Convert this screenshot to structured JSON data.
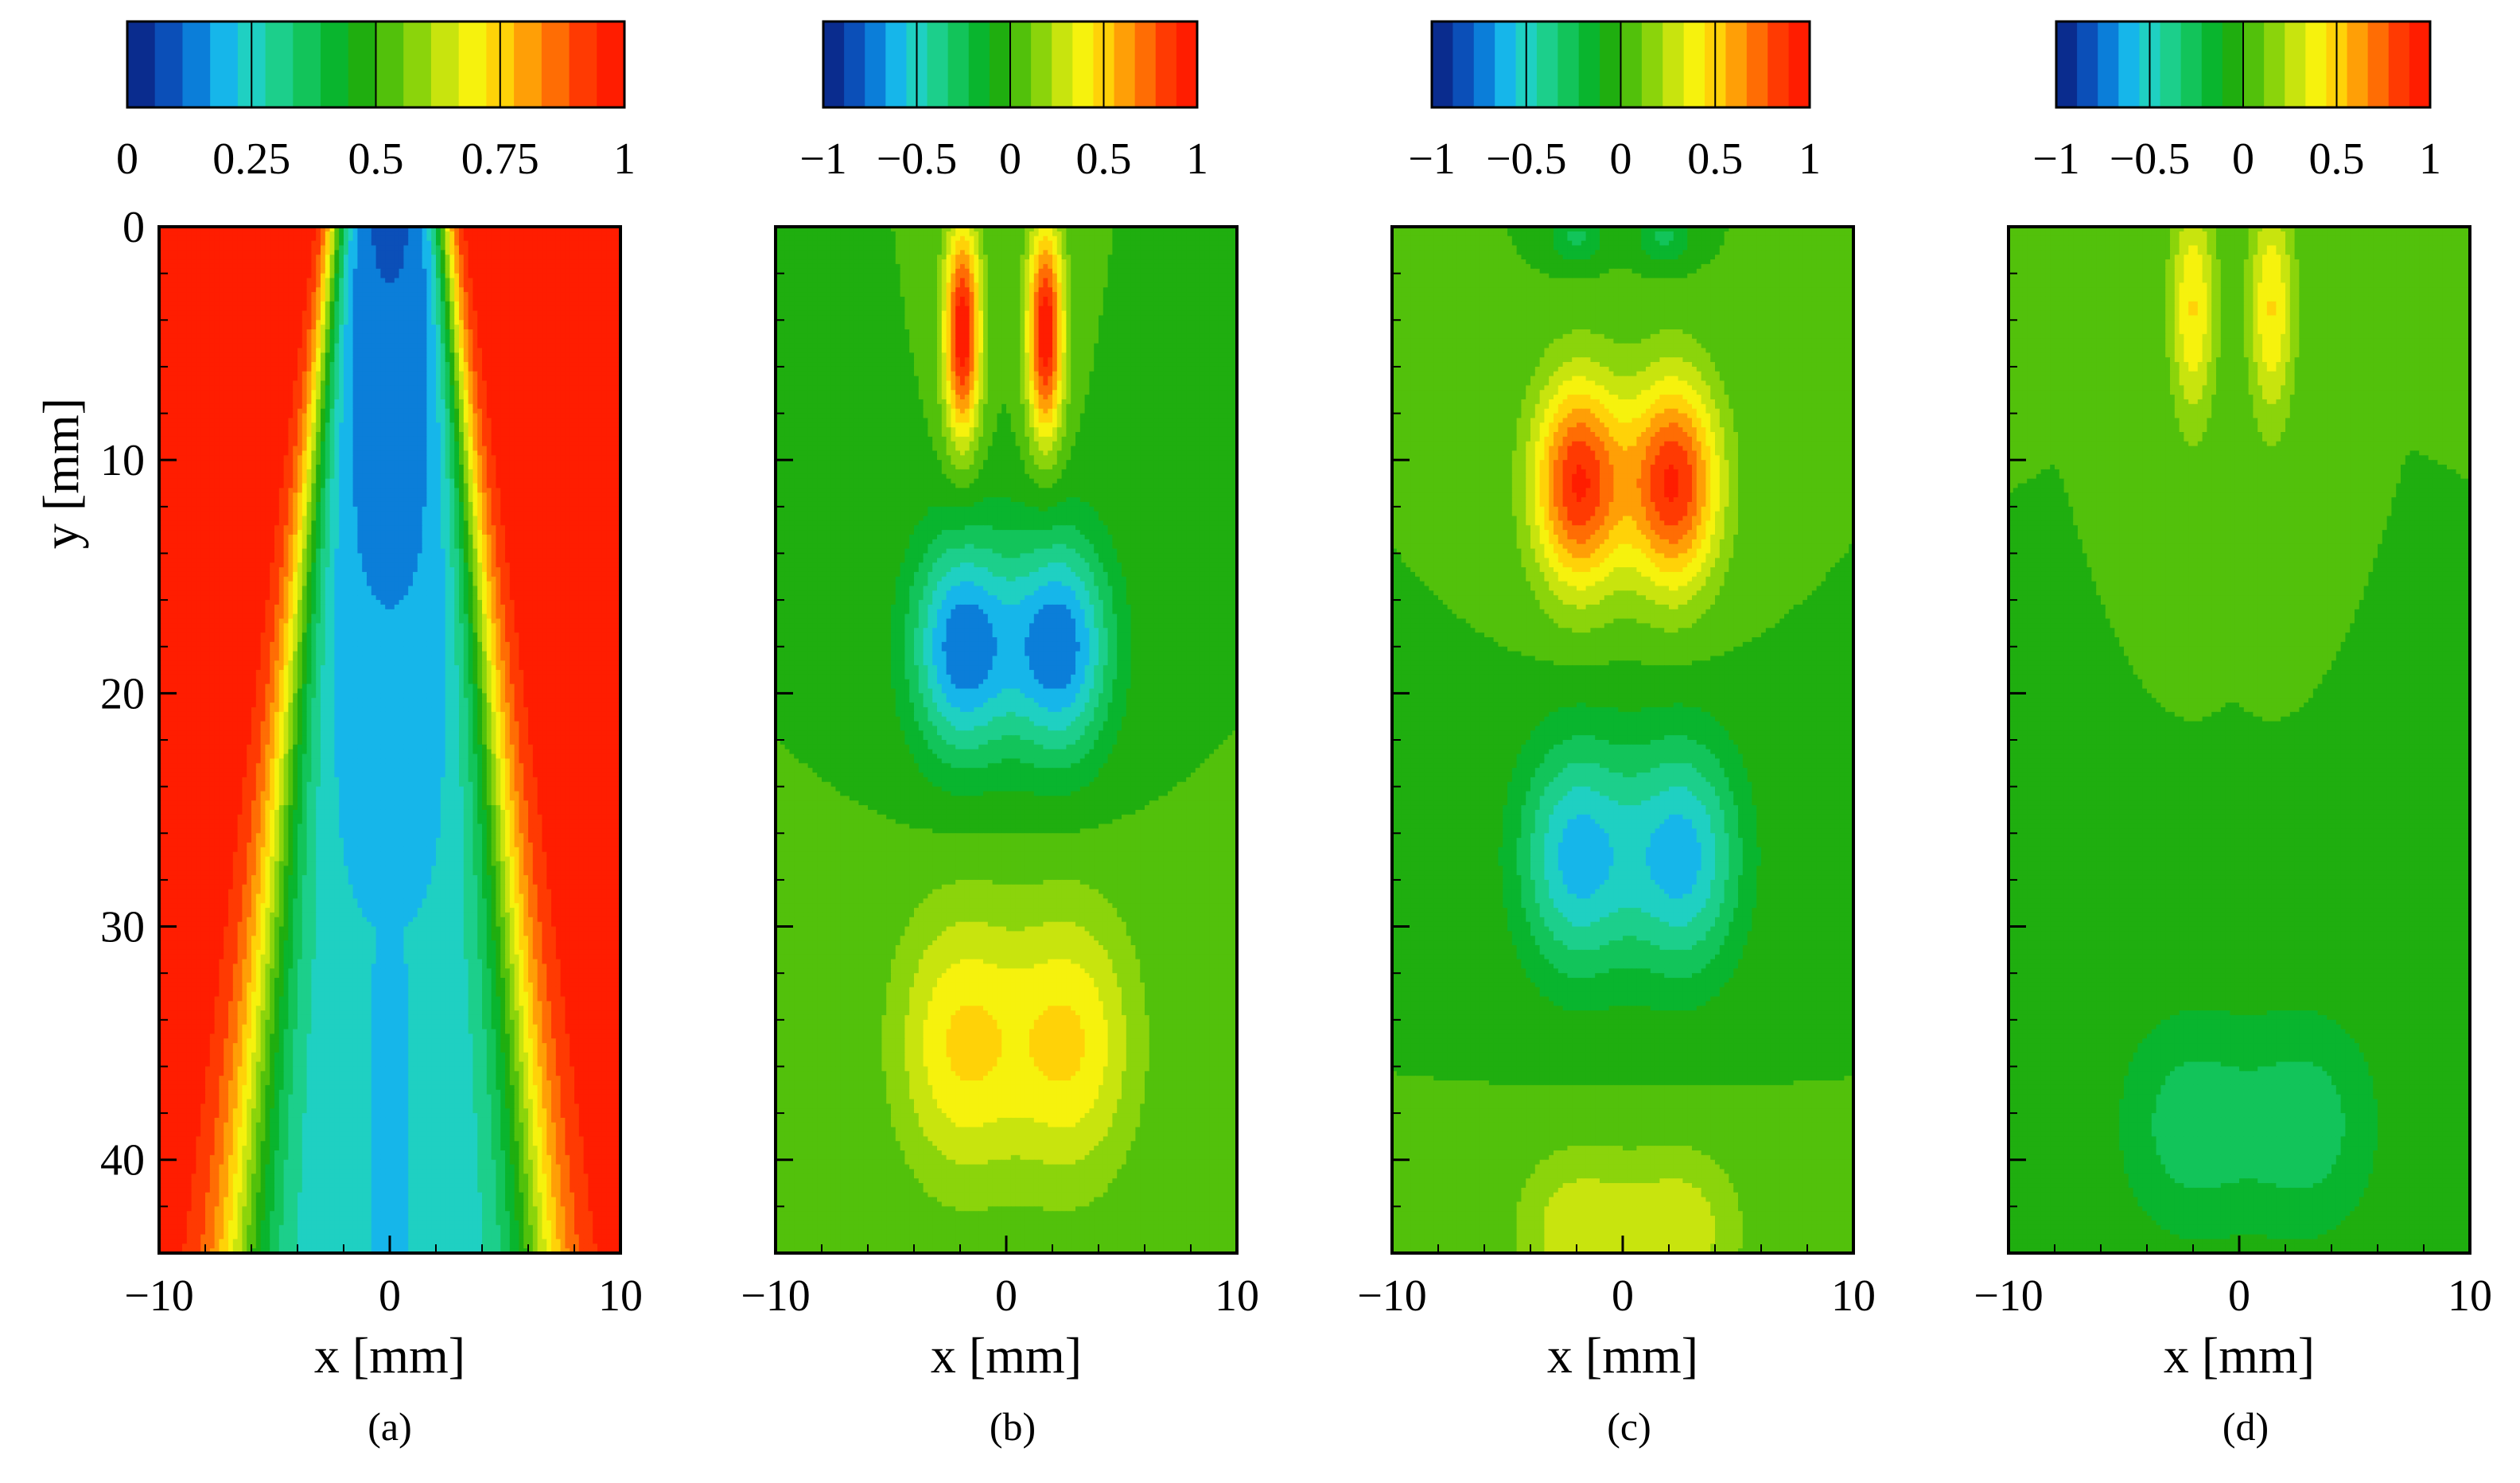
{
  "figure": {
    "panels": [
      "(a)",
      "(b)",
      "(c)",
      "(d)"
    ],
    "colors": {
      "background": "#00b400",
      "scale": [
        "#0a2c8e",
        "#0b4fb8",
        "#0b7ed9",
        "#16b6ea",
        "#1fd0c2",
        "#1ccf8b",
        "#12c45a",
        "#09b52e",
        "#1fae0f",
        "#52c10b",
        "#8bd40b",
        "#c8e40e",
        "#f6f20d",
        "#ffd208",
        "#ff9f06",
        "#ff6d04",
        "#ff3a02",
        "#ff1d00"
      ]
    }
  },
  "chart_data": [
    {
      "type": "heatmap",
      "panel_label": "(a)",
      "xlabel": "x [mm]",
      "ylabel": "y [mm]",
      "xlim": [
        -10,
        10
      ],
      "ylim": [
        0,
        44
      ],
      "xticks": [
        "−10",
        "0",
        "10"
      ],
      "yticks": [
        "0",
        "10",
        "20",
        "30",
        "40"
      ],
      "colorbar": {
        "min": 0,
        "max": 1,
        "ticks": [
          "0",
          "0.25",
          "0.5",
          "0.75",
          "1"
        ]
      },
      "field": {
        "kind": "jet-core",
        "background_value": 1,
        "core_min": 0.1,
        "core_halfwidth_top": 1.7,
        "core_halfwidth_bottom": 4.8
      }
    },
    {
      "type": "heatmap",
      "panel_label": "(b)",
      "xlabel": "x [mm]",
      "ylabel": "",
      "xlim": [
        -10,
        10
      ],
      "ylim": [
        0,
        44
      ],
      "xticks": [
        "−10",
        "0",
        "10"
      ],
      "yticks": [],
      "colorbar": {
        "min": -1,
        "max": 1,
        "ticks": [
          "−1",
          "−0.5",
          "0",
          "0.5",
          "1"
        ]
      },
      "field": {
        "kind": "lobes",
        "lobes": [
          {
            "x": -1.9,
            "y": 4.5,
            "sx": 0.55,
            "sy": 3.2,
            "amp": 1.0
          },
          {
            "x": 1.7,
            "y": 4.5,
            "sx": 0.55,
            "sy": 3.2,
            "amp": 1.0
          },
          {
            "x": -1.9,
            "y": 18,
            "sx": 1.6,
            "sy": 3.4,
            "amp": -0.75
          },
          {
            "x": 2.3,
            "y": 18,
            "sx": 1.6,
            "sy": 3.4,
            "amp": -0.75
          },
          {
            "x": -2.0,
            "y": 35,
            "sx": 2.0,
            "sy": 4.2,
            "amp": 0.45
          },
          {
            "x": 2.8,
            "y": 35,
            "sx": 2.0,
            "sy": 4.2,
            "amp": 0.45
          }
        ]
      }
    },
    {
      "type": "heatmap",
      "panel_label": "(c)",
      "xlabel": "x [mm]",
      "ylabel": "",
      "xlim": [
        -10,
        10
      ],
      "ylim": [
        0,
        44
      ],
      "xticks": [
        "−10",
        "0",
        "10"
      ],
      "yticks": [],
      "colorbar": {
        "min": -1,
        "max": 1,
        "ticks": [
          "−1",
          "−0.5",
          "0",
          "0.5",
          "1"
        ]
      },
      "field": {
        "kind": "lobes",
        "lobes": [
          {
            "x": -2.0,
            "y": 0.5,
            "sx": 0.8,
            "sy": 0.8,
            "amp": -0.25
          },
          {
            "x": 1.8,
            "y": 0.5,
            "sx": 0.8,
            "sy": 0.8,
            "amp": -0.25
          },
          {
            "x": -1.9,
            "y": 11,
            "sx": 1.4,
            "sy": 3.2,
            "amp": 0.9
          },
          {
            "x": 2.2,
            "y": 11,
            "sx": 1.4,
            "sy": 3.2,
            "amp": 0.9
          },
          {
            "x": -2.0,
            "y": 27,
            "sx": 1.8,
            "sy": 3.6,
            "amp": -0.6
          },
          {
            "x": 2.6,
            "y": 27,
            "sx": 1.8,
            "sy": 3.6,
            "amp": -0.6
          },
          {
            "x": -2.0,
            "y": 43,
            "sx": 1.9,
            "sy": 2.5,
            "amp": 0.3
          },
          {
            "x": 2.5,
            "y": 43,
            "sx": 1.9,
            "sy": 2.5,
            "amp": 0.3
          }
        ]
      }
    },
    {
      "type": "heatmap",
      "panel_label": "(d)",
      "xlabel": "x [mm]",
      "ylabel": "",
      "xlim": [
        -10,
        10
      ],
      "ylim": [
        0,
        44
      ],
      "xticks": [
        "−10",
        "0",
        "10"
      ],
      "yticks": [],
      "colorbar": {
        "min": -1,
        "max": 1,
        "ticks": [
          "−1",
          "−0.5",
          "0",
          "0.5",
          "1"
        ]
      },
      "field": {
        "kind": "lobes",
        "lobes": [
          {
            "x": -2.0,
            "y": 3.5,
            "sx": 0.7,
            "sy": 3.5,
            "amp": 0.45
          },
          {
            "x": 1.4,
            "y": 3.5,
            "sx": 0.7,
            "sy": 3.5,
            "amp": 0.45
          },
          {
            "x": -2.2,
            "y": 38.5,
            "sx": 2.2,
            "sy": 3.5,
            "amp": -0.28
          },
          {
            "x": 3.0,
            "y": 38.5,
            "sx": 2.2,
            "sy": 3.5,
            "amp": -0.28
          }
        ]
      }
    }
  ]
}
